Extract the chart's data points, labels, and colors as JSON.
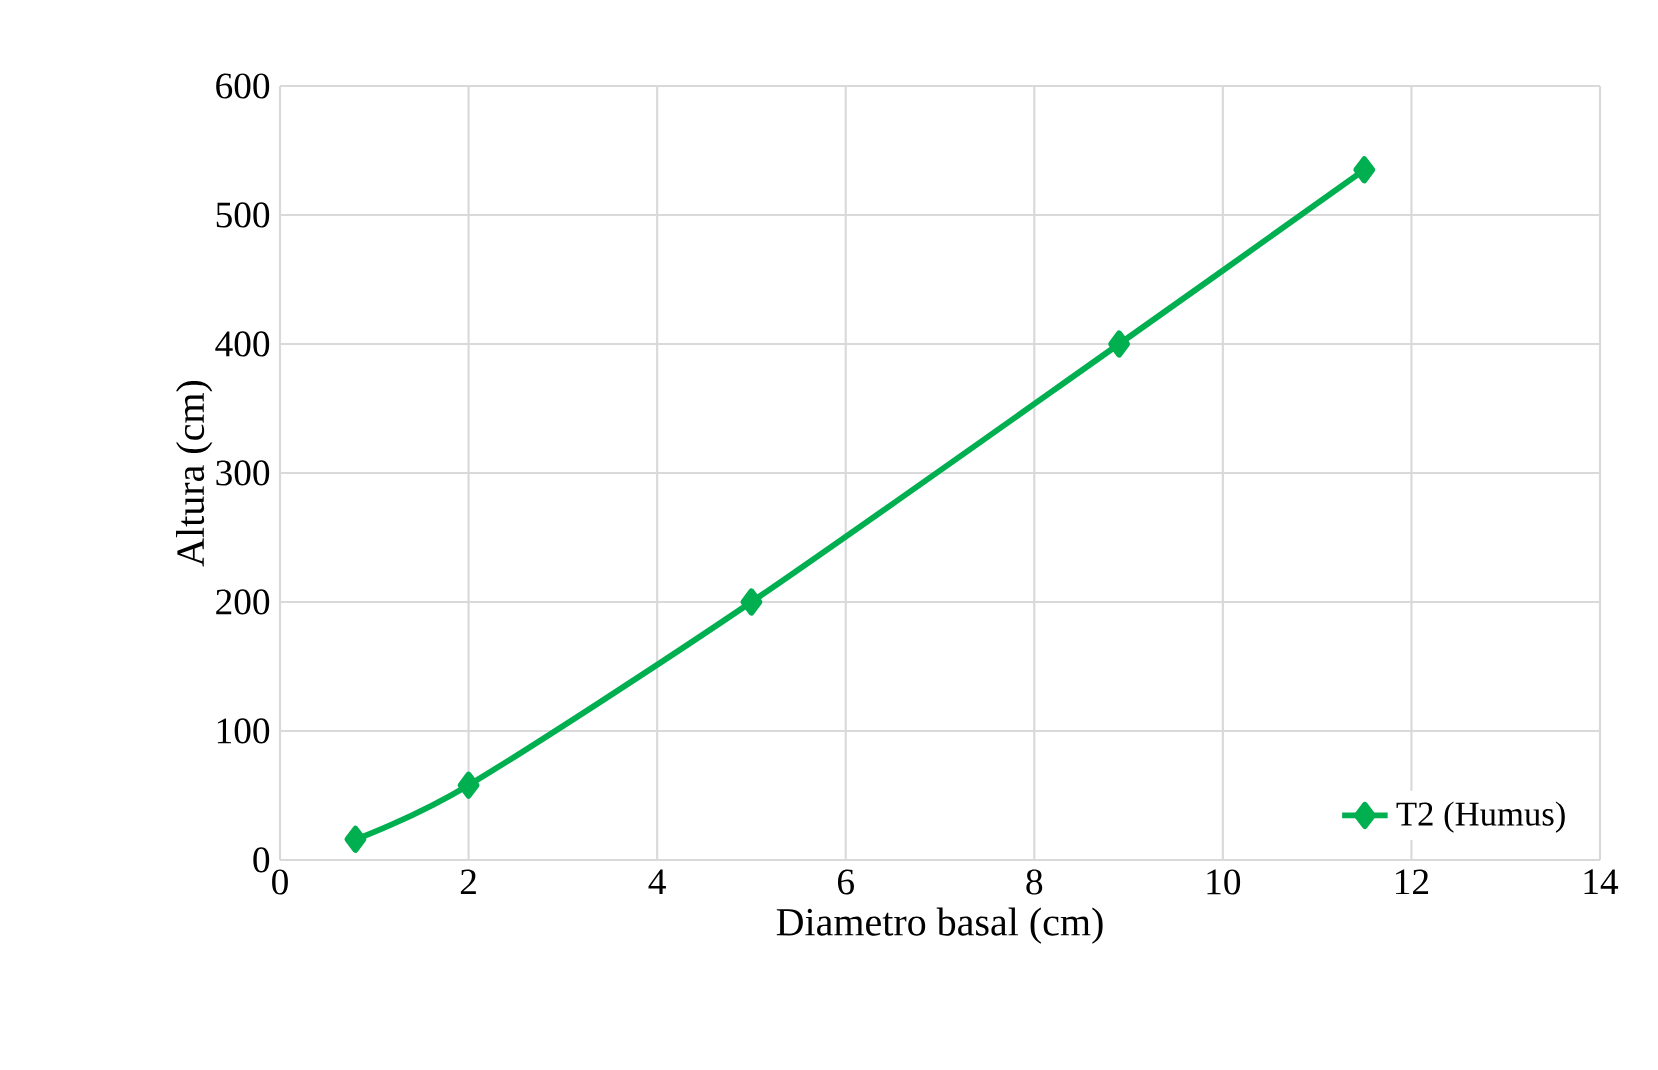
{
  "chart_data": {
    "type": "line",
    "xlabel": "Diametro basal (cm)",
    "ylabel": "Altura (cm)",
    "x": [
      0.8,
      2,
      5,
      8.9,
      11.5
    ],
    "series": [
      {
        "name": "T2 (Humus)",
        "color": "#00b050",
        "values": [
          16,
          58,
          200,
          400,
          535
        ]
      }
    ],
    "xlim": [
      0,
      14
    ],
    "ylim": [
      0,
      600
    ],
    "xticks": [
      0,
      2,
      4,
      6,
      8,
      10,
      12,
      14
    ],
    "yticks": [
      0,
      100,
      200,
      300,
      400,
      500,
      600
    ],
    "grid": true,
    "legend": "bottom right",
    "marker": "diamond",
    "line_style": "solid"
  }
}
